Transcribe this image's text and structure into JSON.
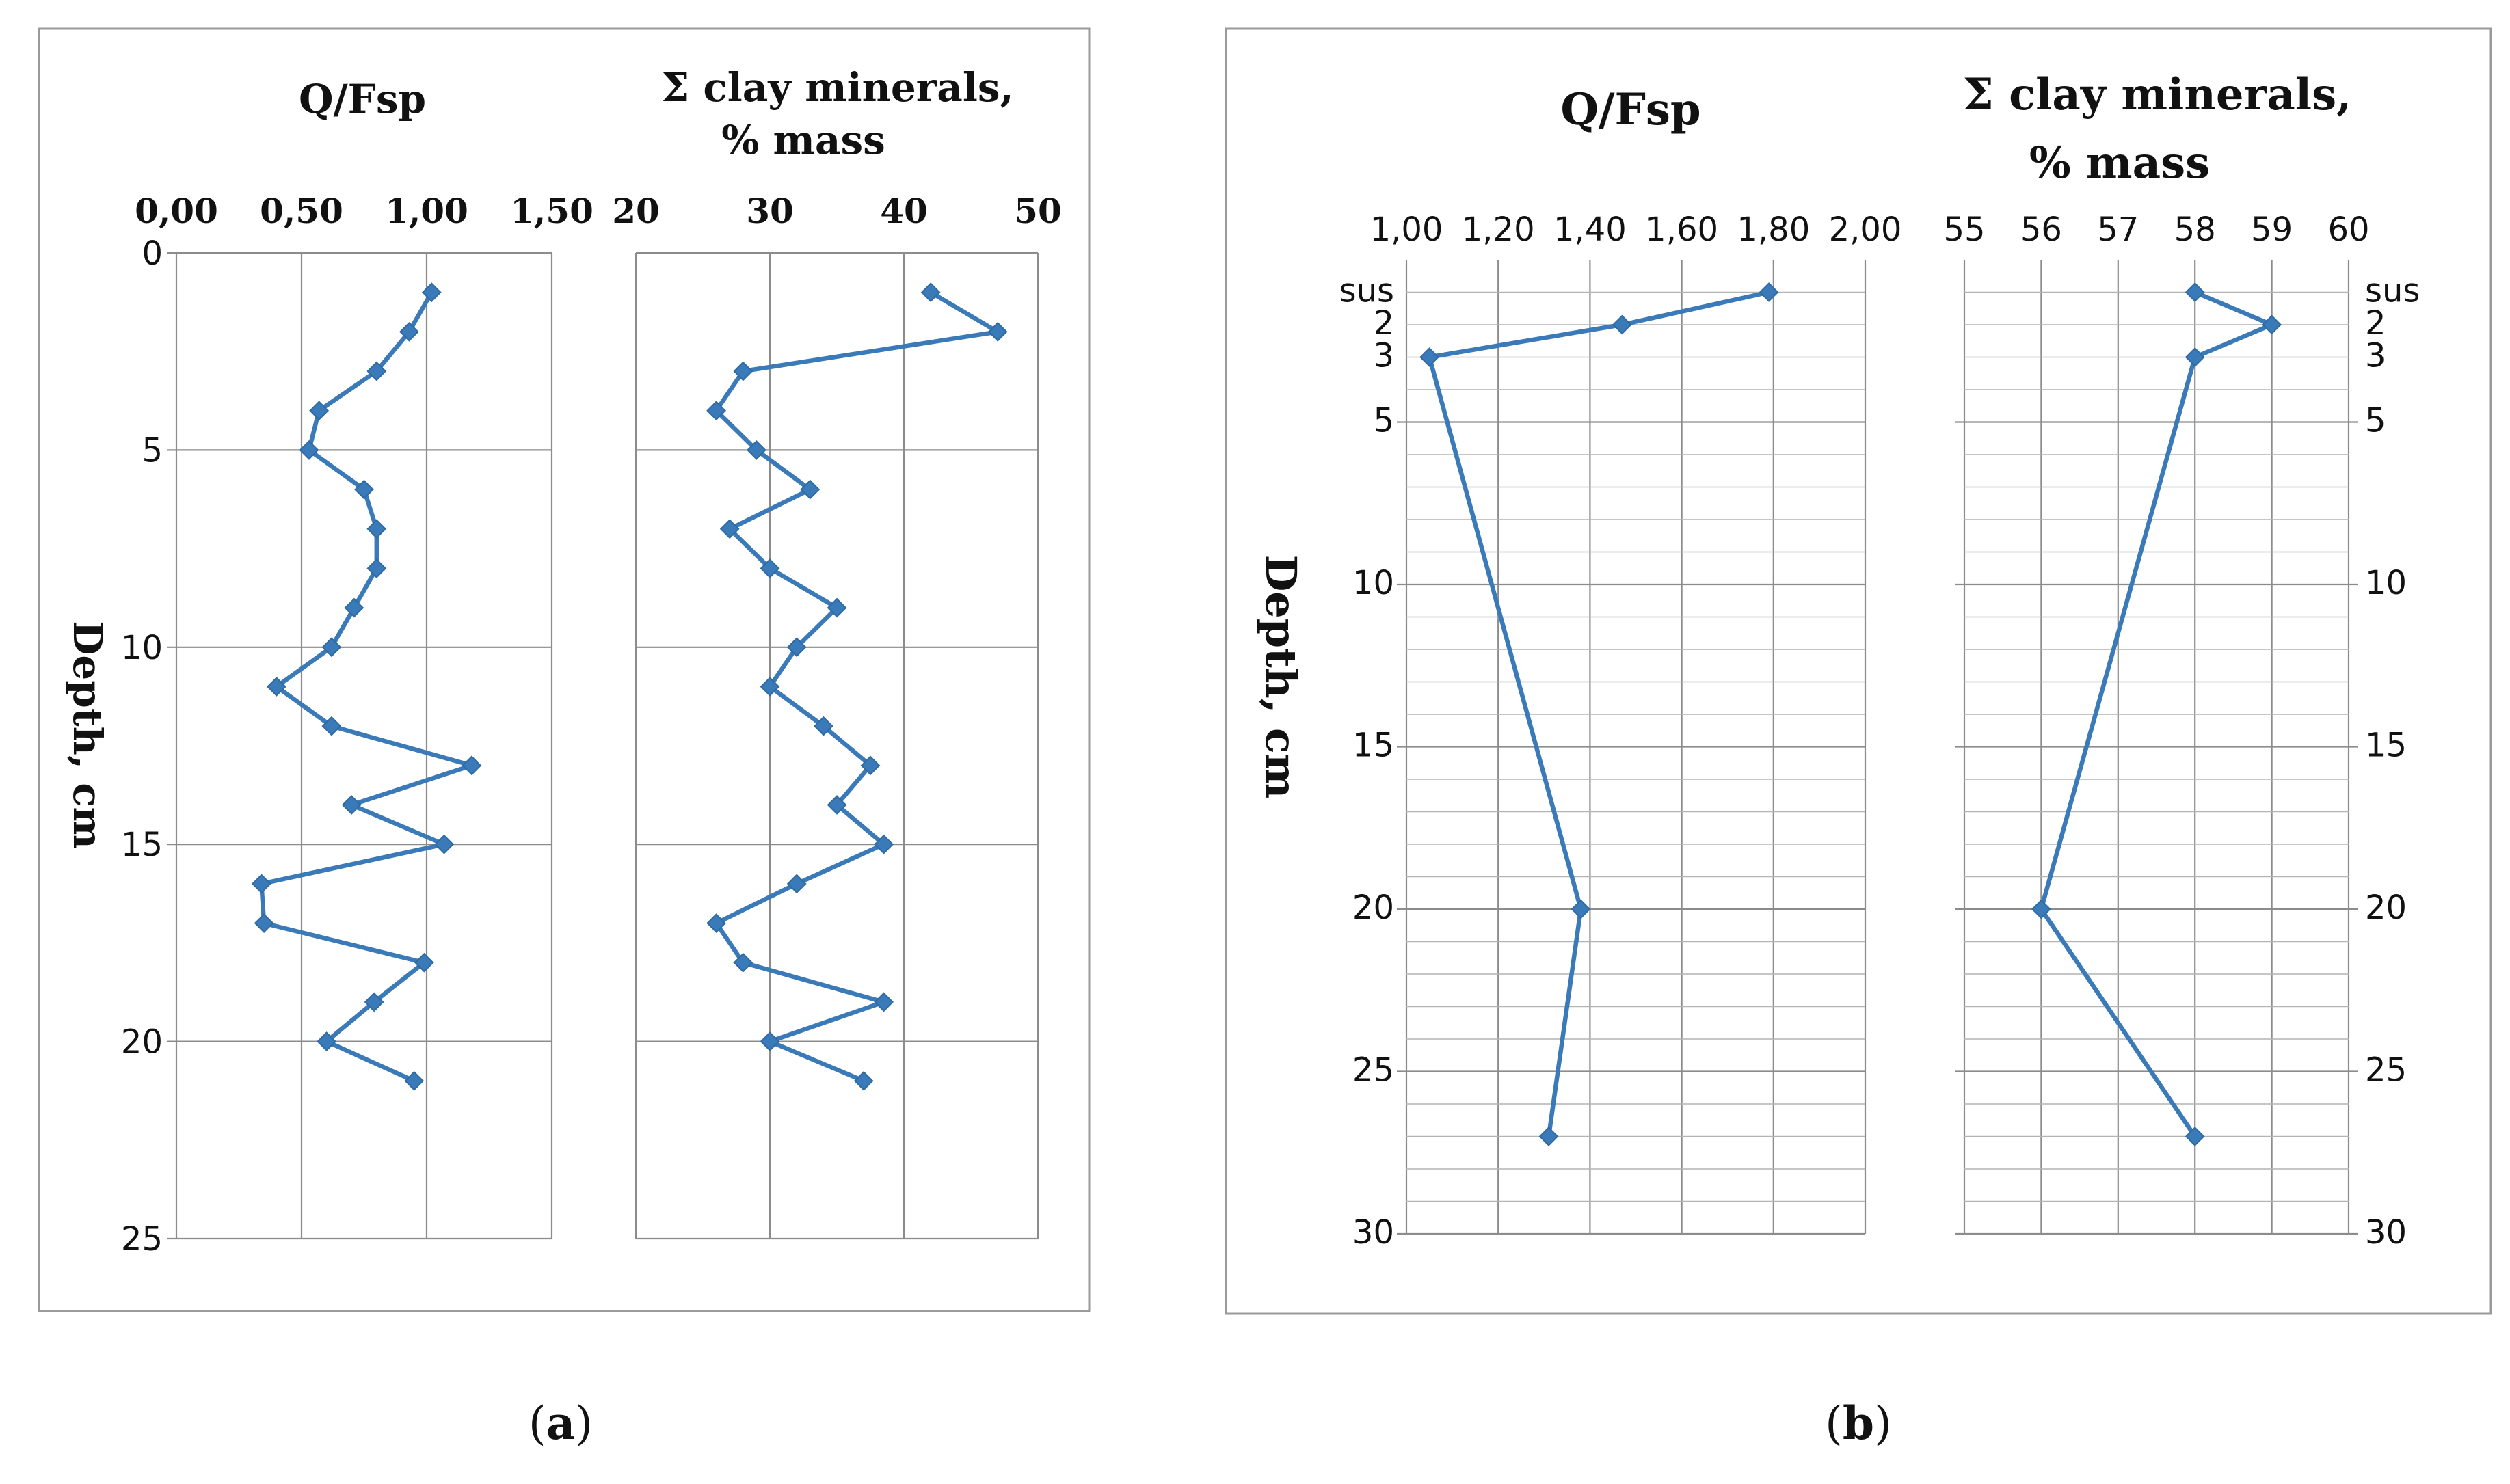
{
  "chart_data": [
    {
      "id": "a1",
      "type": "line",
      "panel": "a",
      "title": "Q/Fsp",
      "ylabel": "Depth, cm",
      "xlim": [
        0,
        1.5
      ],
      "ylim": [
        0,
        25
      ],
      "x_ticks": [
        "0,00",
        "0,50",
        "1,00",
        "1,50"
      ],
      "y_ticks": [
        "0",
        "5",
        "10",
        "15",
        "20",
        "25"
      ],
      "series": [
        {
          "name": "Q/Fsp",
          "color": "#3a7ab8",
          "x": [
            1.02,
            0.93,
            0.8,
            0.57,
            0.53,
            0.75,
            0.8,
            0.8,
            0.71,
            0.62,
            0.4,
            0.62,
            1.18,
            0.7,
            1.07,
            0.34,
            0.35,
            0.99,
            0.79,
            0.6,
            0.95
          ],
          "y": [
            1,
            2,
            3,
            4,
            5,
            6,
            7,
            8,
            9,
            10,
            11,
            12,
            13,
            14,
            15,
            16,
            17,
            18,
            19,
            20,
            21
          ]
        }
      ]
    },
    {
      "id": "a2",
      "type": "line",
      "panel": "a",
      "title_lines": [
        "Σ clay minerals,",
        "% mass"
      ],
      "xlim": [
        20,
        50
      ],
      "ylim": [
        0,
        25
      ],
      "x_ticks": [
        "20",
        "30",
        "40",
        "50"
      ],
      "series": [
        {
          "name": "Σ clay minerals",
          "color": "#3a7ab8",
          "x": [
            42.0,
            47.0,
            28.0,
            26.0,
            29.0,
            33.0,
            27.0,
            30.0,
            35.0,
            32.0,
            30.0,
            34.0,
            37.5,
            35.0,
            38.5,
            32.0,
            26.0,
            28.0,
            38.5,
            30.0,
            37.0
          ],
          "y": [
            1,
            2,
            3,
            4,
            5,
            6,
            7,
            8,
            9,
            10,
            11,
            12,
            13,
            14,
            15,
            16,
            17,
            18,
            19,
            20,
            21
          ]
        }
      ]
    },
    {
      "id": "b1",
      "type": "line",
      "panel": "b",
      "title": "Q/Fsp",
      "ylabel": "Depth, cm",
      "xlim": [
        1.0,
        2.0
      ],
      "ylim": [
        0,
        30
      ],
      "x_ticks": [
        "1,00",
        "1,20",
        "1,40",
        "1,60",
        "1,80",
        "2,00"
      ],
      "y_ticks": [
        "sus",
        "2",
        "3",
        "5",
        "10",
        "15",
        "20",
        "25",
        "30"
      ],
      "y_tick_positions": [
        1,
        2,
        3,
        5,
        10,
        15,
        20,
        25,
        30
      ],
      "series": [
        {
          "name": "Q/Fsp",
          "color": "#3a7ab8",
          "x": [
            1.79,
            1.47,
            1.05,
            1.38,
            1.31
          ],
          "y": [
            1,
            2,
            3,
            20,
            27
          ]
        }
      ]
    },
    {
      "id": "b2",
      "type": "line",
      "panel": "b",
      "title_lines": [
        "Σ clay minerals,",
        "% mass"
      ],
      "xlim": [
        55,
        60
      ],
      "ylim": [
        0,
        30
      ],
      "x_ticks": [
        "55",
        "56",
        "57",
        "58",
        "59",
        "60"
      ],
      "y_ticks": [
        "sus",
        "2",
        "3",
        "5",
        "10",
        "15",
        "20",
        "25",
        "30"
      ],
      "y_tick_positions": [
        1,
        2,
        3,
        5,
        10,
        15,
        20,
        25,
        30
      ],
      "series": [
        {
          "name": "Σ clay minerals",
          "color": "#3a7ab8",
          "x": [
            58,
            59,
            58,
            56,
            58
          ],
          "y": [
            1,
            2,
            3,
            20,
            27
          ]
        }
      ]
    }
  ],
  "captions": {
    "a": {
      "open": "(",
      "letter": "a",
      "close": ")"
    },
    "b": {
      "open": "(",
      "letter": "b",
      "close": ")"
    }
  }
}
